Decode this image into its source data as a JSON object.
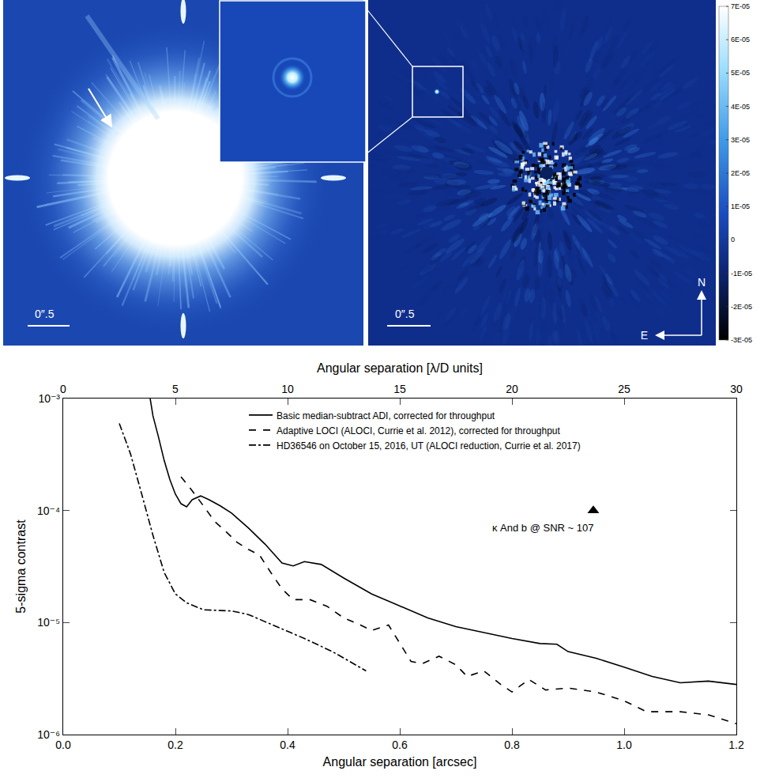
{
  "panels": {
    "left_image": {
      "scale_bar": "0″.5"
    },
    "right_image": {
      "scale_bar": "0″.5",
      "compass": {
        "north": "N",
        "east": "E"
      },
      "colorbar": {
        "range": [
          -3e-05,
          7e-05
        ],
        "ticks": [
          {
            "value": 7e-05,
            "label": "7E-05"
          },
          {
            "value": 6e-05,
            "label": "6E-05"
          },
          {
            "value": 5e-05,
            "label": "5E-05"
          },
          {
            "value": 4e-05,
            "label": "4E-05"
          },
          {
            "value": 3e-05,
            "label": "3E-05"
          },
          {
            "value": 2e-05,
            "label": "2E-05"
          },
          {
            "value": 1e-05,
            "label": "1E-05"
          },
          0,
          {
            "value": -1e-05,
            "label": "-1E-05"
          },
          {
            "value": -2e-05,
            "label": "-2E-05"
          },
          {
            "value": -3e-05,
            "label": "-3E-05"
          }
        ]
      }
    }
  },
  "chart_data": {
    "type": "line",
    "x_label": "Angular separation [arcsec]",
    "x2_label": "Angular separation [λ/D units]",
    "y_label": "5-sigma contrast",
    "xlim": [
      0,
      1.2
    ],
    "xticks": [
      {
        "value": 0,
        "label": "0.0"
      },
      0.2,
      0.4,
      0.6,
      0.8,
      {
        "value": 1,
        "label": "1.0"
      },
      1.2
    ],
    "x2lim": [
      0,
      30
    ],
    "x2ticks": [
      0,
      5,
      10,
      15,
      20,
      25,
      30
    ],
    "ylim": [
      1e-06,
      0.001
    ],
    "yticks": [
      {
        "value": 1e-06,
        "label": "10⁻⁶"
      },
      {
        "value": 1e-05,
        "label": "10⁻⁵"
      },
      {
        "value": 0.0001,
        "label": "10⁻⁴"
      },
      {
        "value": 0.001,
        "label": "10⁻³"
      }
    ],
    "log": "y",
    "grid": false,
    "legend": "top",
    "series": [
      {
        "name": "Basic median-subtract ADI, corrected for throughput",
        "color": "#000000",
        "line_style": "solid",
        "x": [
          0.155,
          0.16,
          0.17,
          0.18,
          0.19,
          0.2,
          0.21,
          0.22,
          0.23,
          0.245,
          0.26,
          0.28,
          0.3,
          0.33,
          0.36,
          0.39,
          0.41,
          0.43,
          0.46,
          0.5,
          0.55,
          0.6,
          0.65,
          0.7,
          0.75,
          0.8,
          0.85,
          0.88,
          0.9,
          0.95,
          1.0,
          1.05,
          1.1,
          1.15,
          1.2
        ],
        "values": [
          0.001,
          0.0007,
          0.00045,
          0.00028,
          0.00019,
          0.00014,
          0.000115,
          0.000108,
          0.000125,
          0.000135,
          0.000125,
          0.00011,
          9.5e-05,
          7e-05,
          5e-05,
          3.4e-05,
          3.2e-05,
          3.5e-05,
          3.3e-05,
          2.5e-05,
          1.8e-05,
          1.4e-05,
          1.1e-05,
          9.2e-06,
          8.1e-06,
          7.2e-06,
          6.5e-06,
          6.4e-06,
          5.5e-06,
          4.8e-06,
          4e-06,
          3.3e-06,
          2.9e-06,
          3e-06,
          2.8e-06
        ]
      },
      {
        "name": "Adaptive LOCI (ALOCI, Currie et al. 2012), corrected for throughput",
        "color": "#000000",
        "line_style": "dash",
        "x": [
          0.21,
          0.23,
          0.25,
          0.27,
          0.29,
          0.31,
          0.33,
          0.35,
          0.37,
          0.39,
          0.41,
          0.44,
          0.47,
          0.5,
          0.53,
          0.55,
          0.58,
          0.6,
          0.62,
          0.64,
          0.67,
          0.7,
          0.72,
          0.75,
          0.78,
          0.8,
          0.83,
          0.86,
          0.9,
          0.95,
          1.0,
          1.04,
          1.1,
          1.15,
          1.2
        ],
        "values": [
          0.0002,
          0.00015,
          0.00011,
          8e-05,
          6.5e-05,
          5.2e-05,
          4.5e-05,
          4e-05,
          2.8e-05,
          2e-05,
          1.6e-05,
          1.6e-05,
          1.4e-05,
          1.1e-05,
          9.5e-06,
          8.5e-06,
          9.5e-06,
          6.5e-06,
          4.5e-06,
          4.3e-06,
          5e-06,
          4.2e-06,
          3.3e-06,
          3.7e-06,
          2.8e-06,
          2.4e-06,
          3.1e-06,
          2.5e-06,
          2.6e-06,
          2.4e-06,
          2e-06,
          1.6e-06,
          1.6e-06,
          1.5e-06,
          1.25e-06
        ]
      },
      {
        "name": "HD36546 on October 15, 2016, UT (ALOCI reduction, Currie et al. 2017)",
        "color": "#000000",
        "line_style": "dashdot",
        "x": [
          0.1,
          0.12,
          0.14,
          0.16,
          0.18,
          0.2,
          0.22,
          0.25,
          0.28,
          0.3,
          0.33,
          0.38,
          0.43,
          0.48,
          0.54
        ],
        "values": [
          0.0006,
          0.00032,
          0.00014,
          6e-05,
          2.8e-05,
          1.8e-05,
          1.5e-05,
          1.3e-05,
          1.28e-05,
          1.27e-05,
          1.18e-05,
          9.2e-06,
          7.2e-06,
          5.5e-06,
          3.7e-06
        ]
      }
    ],
    "annotations": [
      {
        "text": "κ And b @ SNR ~ 107",
        "x": 0.945,
        "y": 0.0001,
        "marker": "triangle-up",
        "color": "#000000"
      }
    ]
  }
}
